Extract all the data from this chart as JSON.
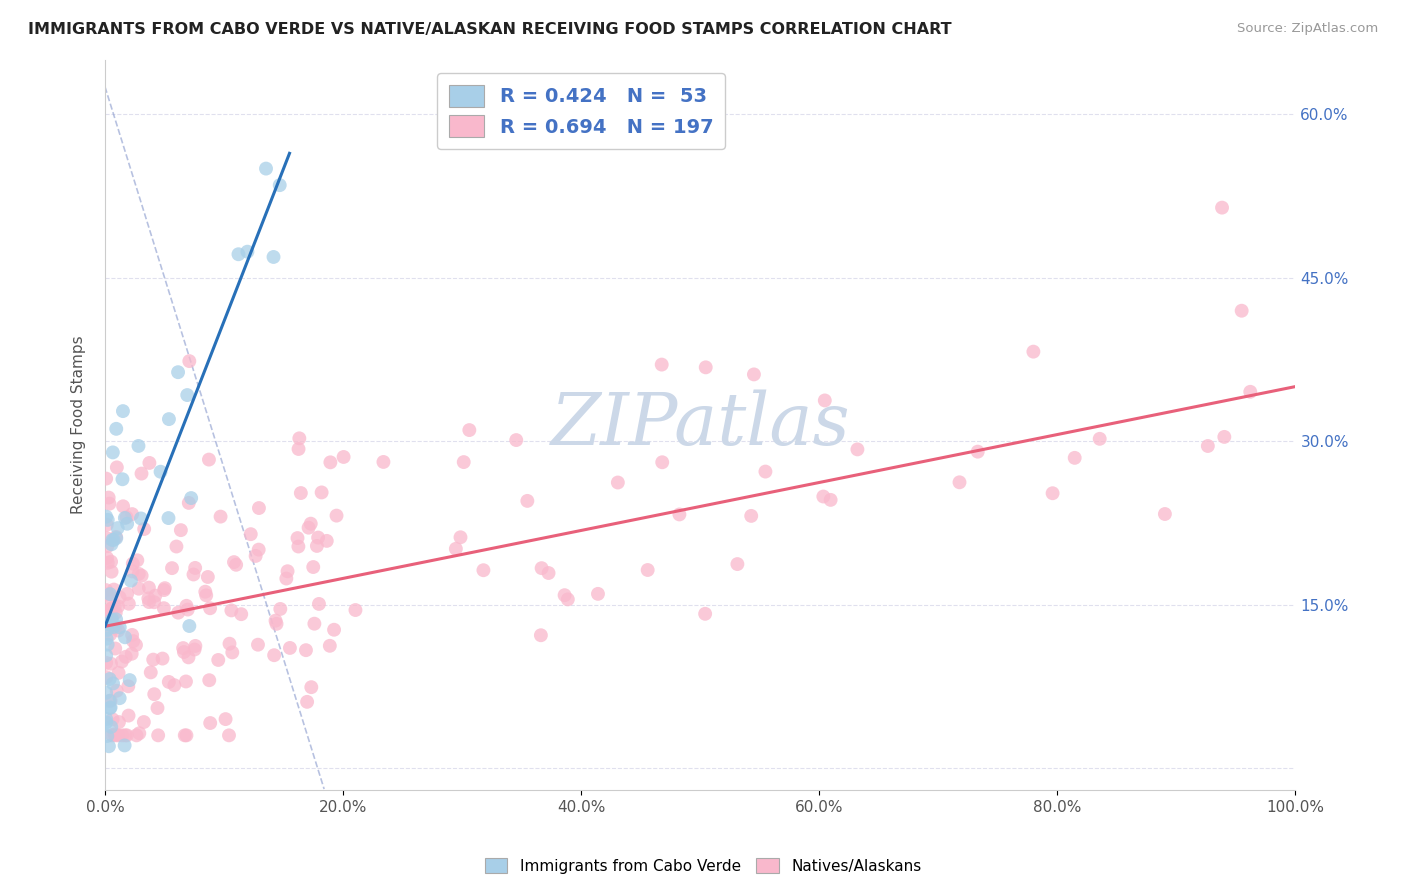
{
  "title": "IMMIGRANTS FROM CABO VERDE VS NATIVE/ALASKAN RECEIVING FOOD STAMPS CORRELATION CHART",
  "source": "Source: ZipAtlas.com",
  "ylabel": "Receiving Food Stamps",
  "xlim": [
    0.0,
    1.0
  ],
  "ylim": [
    -0.02,
    0.65
  ],
  "y_tick_vals": [
    0.0,
    0.15,
    0.3,
    0.45,
    0.6
  ],
  "y_tick_labels_right": [
    "",
    "15.0%",
    "30.0%",
    "45.0%",
    "60.0%"
  ],
  "x_tick_vals": [
    0.0,
    0.2,
    0.4,
    0.6,
    0.8,
    1.0
  ],
  "x_tick_labels": [
    "0.0%",
    "20.0%",
    "40.0%",
    "60.0%",
    "80.0%",
    "100.0%"
  ],
  "legend_blue_R": "0.424",
  "legend_blue_N": "53",
  "legend_pink_R": "0.694",
  "legend_pink_N": "197",
  "legend_label_blue": "Immigrants from Cabo Verde",
  "legend_label_pink": "Natives/Alaskans",
  "color_blue_fill": "#a8cfe8",
  "color_pink_fill": "#f9b8cc",
  "color_line_blue": "#2870b8",
  "color_line_pink": "#e8607a",
  "color_legend_text": "#4472c4",
  "color_grid": "#e0e0ee",
  "watermark_text": "ZIPatlas",
  "watermark_color": "#ccd8e8",
  "blue_seed": 77,
  "pink_seed": 42,
  "n_blue": 53,
  "n_pink": 197,
  "blue_reg_intercept": 0.13,
  "blue_reg_slope": 2.8,
  "pink_reg_intercept": 0.13,
  "pink_reg_slope": 0.22
}
